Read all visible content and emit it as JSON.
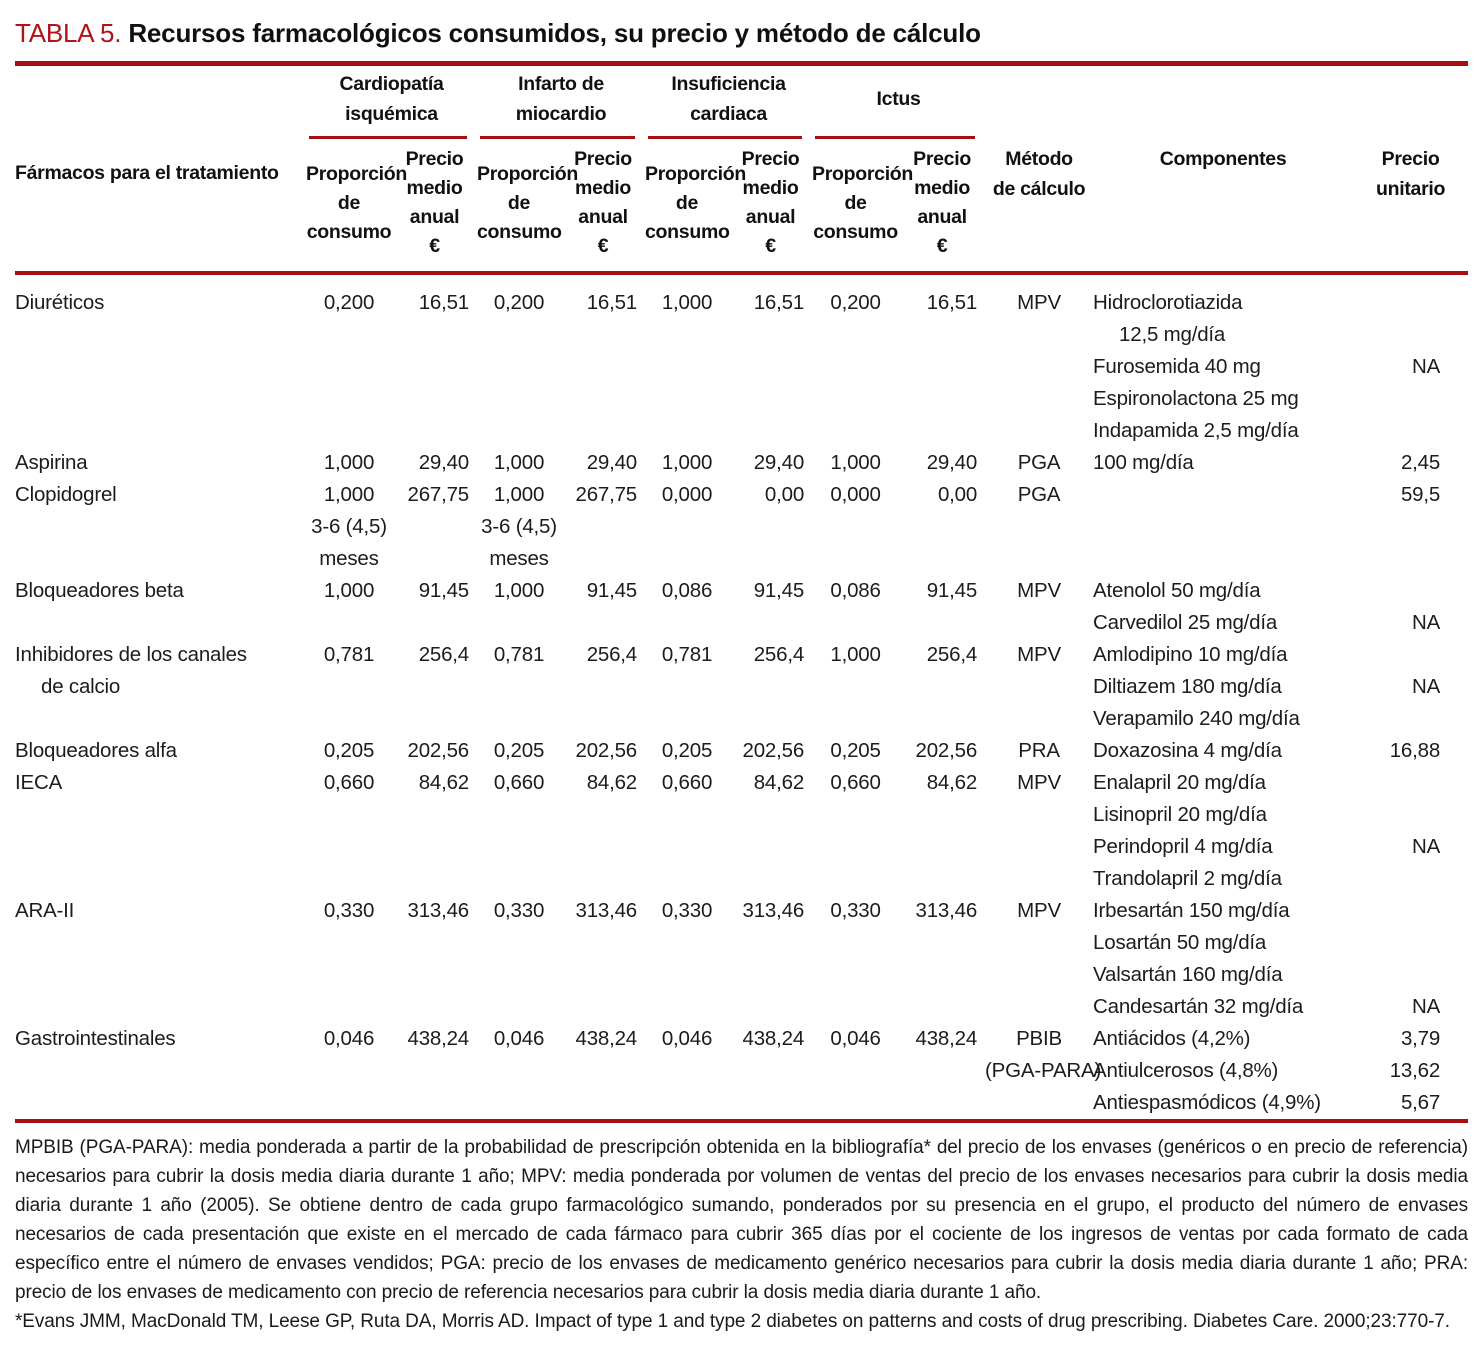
{
  "colors": {
    "accent_red": "#a50f14",
    "title_red": "#b3121a",
    "text": "#1c1c1c"
  },
  "title": {
    "label": "TABLA 5.",
    "text": "Recursos farmacológicos consumidos, su precio y método de cálculo"
  },
  "header": {
    "drug_col": "Fármacos para el tratamiento",
    "groups": [
      {
        "id": "cardiopatia-isquemica",
        "lines": [
          "Cardiopatía",
          "isquémica"
        ]
      },
      {
        "id": "infarto-de-miocardio",
        "lines": [
          "Infarto de",
          "miocardio"
        ]
      },
      {
        "id": "insuficiencia-cardiaca",
        "lines": [
          "Insuficiencia",
          "cardiaca"
        ]
      },
      {
        "id": "ictus",
        "lines": [
          "Ictus"
        ]
      }
    ],
    "sub_proportion": [
      "Proporción",
      "de",
      "consumo"
    ],
    "sub_price": [
      "Precio",
      "medio",
      "anual",
      "€"
    ],
    "method_col": [
      "Método",
      "de cálculo"
    ],
    "components_col": "Componentes",
    "unit_price_col": [
      "Precio",
      "unitario"
    ]
  },
  "rows": [
    {
      "cells": [
        "Diuréticos",
        "0,200",
        "16,51",
        "0,200",
        "16,51",
        "1,000",
        "16,51",
        "0,200",
        "16,51",
        "MPV",
        "Hidroclorotiazida",
        ""
      ],
      "indent_drug": false,
      "indent_comp": false
    },
    {
      "cells": [
        "",
        "",
        "",
        "",
        "",
        "",
        "",
        "",
        "",
        "",
        "12,5 mg/día",
        ""
      ],
      "indent_drug": false,
      "indent_comp": true
    },
    {
      "cells": [
        "",
        "",
        "",
        "",
        "",
        "",
        "",
        "",
        "",
        "",
        "Furosemida 40 mg",
        "NA"
      ],
      "indent_drug": false,
      "indent_comp": false
    },
    {
      "cells": [
        "",
        "",
        "",
        "",
        "",
        "",
        "",
        "",
        "",
        "",
        "Espironolactona 25 mg",
        ""
      ],
      "indent_drug": false,
      "indent_comp": false
    },
    {
      "cells": [
        "",
        "",
        "",
        "",
        "",
        "",
        "",
        "",
        "",
        "",
        "Indapamida 2,5 mg/día",
        ""
      ],
      "indent_drug": false,
      "indent_comp": false
    },
    {
      "cells": [
        "Aspirina",
        "1,000",
        "29,40",
        "1,000",
        "29,40",
        "1,000",
        "29,40",
        "1,000",
        "29,40",
        "PGA",
        "100 mg/día",
        "2,45"
      ],
      "indent_drug": false,
      "indent_comp": false
    },
    {
      "cells": [
        "Clopidogrel",
        "1,000",
        "267,75",
        "1,000",
        "267,75",
        "0,000",
        "0,00",
        "0,000",
        "0,00",
        "PGA",
        "",
        "59,5"
      ],
      "indent_drug": false,
      "indent_comp": false
    },
    {
      "cells": [
        "",
        "3-6 (4,5)",
        "",
        "3-6 (4,5)",
        "",
        "",
        "",
        "",
        "",
        "",
        "",
        ""
      ],
      "indent_drug": false,
      "indent_comp": false
    },
    {
      "cells": [
        "",
        "meses",
        "",
        "meses",
        "",
        "",
        "",
        "",
        "",
        "",
        "",
        ""
      ],
      "indent_drug": false,
      "indent_comp": false
    },
    {
      "cells": [
        "Bloqueadores beta",
        "1,000",
        "91,45",
        "1,000",
        "91,45",
        "0,086",
        "91,45",
        "0,086",
        "91,45",
        "MPV",
        "Atenolol 50 mg/día",
        ""
      ],
      "indent_drug": false,
      "indent_comp": false
    },
    {
      "cells": [
        "",
        "",
        "",
        "",
        "",
        "",
        "",
        "",
        "",
        "",
        "Carvedilol 25 mg/día",
        "NA"
      ],
      "indent_drug": false,
      "indent_comp": false
    },
    {
      "cells": [
        "Inhibidores de los canales",
        "0,781",
        "256,4",
        "0,781",
        "256,4",
        "0,781",
        "256,4",
        "1,000",
        "256,4",
        "MPV",
        "Amlodipino 10 mg/día",
        ""
      ],
      "indent_drug": false,
      "indent_comp": false
    },
    {
      "cells": [
        "de calcio",
        "",
        "",
        "",
        "",
        "",
        "",
        "",
        "",
        "",
        "Diltiazem 180 mg/día",
        "NA"
      ],
      "indent_drug": true,
      "indent_comp": false
    },
    {
      "cells": [
        "",
        "",
        "",
        "",
        "",
        "",
        "",
        "",
        "",
        "",
        "Verapamilo 240 mg/día",
        ""
      ],
      "indent_drug": false,
      "indent_comp": false
    },
    {
      "cells": [
        "Bloqueadores alfa",
        "0,205",
        "202,56",
        "0,205",
        "202,56",
        "0,205",
        "202,56",
        "0,205",
        "202,56",
        "PRA",
        "Doxazosina 4 mg/día",
        "16,88"
      ],
      "indent_drug": false,
      "indent_comp": false
    },
    {
      "cells": [
        "IECA",
        "0,660",
        "84,62",
        "0,660",
        "84,62",
        "0,660",
        "84,62",
        "0,660",
        "84,62",
        "MPV",
        "Enalapril 20 mg/día",
        ""
      ],
      "indent_drug": false,
      "indent_comp": false
    },
    {
      "cells": [
        "",
        "",
        "",
        "",
        "",
        "",
        "",
        "",
        "",
        "",
        "Lisinopril 20 mg/día",
        ""
      ],
      "indent_drug": false,
      "indent_comp": false
    },
    {
      "cells": [
        "",
        "",
        "",
        "",
        "",
        "",
        "",
        "",
        "",
        "",
        "Perindopril 4 mg/día",
        "NA"
      ],
      "indent_drug": false,
      "indent_comp": false
    },
    {
      "cells": [
        "",
        "",
        "",
        "",
        "",
        "",
        "",
        "",
        "",
        "",
        "Trandolapril 2 mg/día",
        ""
      ],
      "indent_drug": false,
      "indent_comp": false
    },
    {
      "cells": [
        "ARA-II",
        "0,330",
        "313,46",
        "0,330",
        "313,46",
        "0,330",
        "313,46",
        "0,330",
        "313,46",
        "MPV",
        "Irbesartán 150 mg/día",
        ""
      ],
      "indent_drug": false,
      "indent_comp": false
    },
    {
      "cells": [
        "",
        "",
        "",
        "",
        "",
        "",
        "",
        "",
        "",
        "",
        "Losartán 50 mg/día",
        ""
      ],
      "indent_drug": false,
      "indent_comp": false
    },
    {
      "cells": [
        "",
        "",
        "",
        "",
        "",
        "",
        "",
        "",
        "",
        "",
        "Valsartán 160 mg/día",
        ""
      ],
      "indent_drug": false,
      "indent_comp": false
    },
    {
      "cells": [
        "",
        "",
        "",
        "",
        "",
        "",
        "",
        "",
        "",
        "",
        "Candesartán 32 mg/día",
        "NA"
      ],
      "indent_drug": false,
      "indent_comp": false
    },
    {
      "cells": [
        "Gastrointestinales",
        "0,046",
        "438,24",
        "0,046",
        "438,24",
        "0,046",
        "438,24",
        "0,046",
        "438,24",
        "PBIB",
        "Antiácidos (4,2%)",
        "3,79"
      ],
      "indent_drug": false,
      "indent_comp": false
    },
    {
      "cells": [
        "",
        "",
        "",
        "",
        "",
        "",
        "",
        "",
        "",
        "(PGA-PARA)",
        "Antiulcerosos (4,8%)",
        "13,62"
      ],
      "indent_drug": false,
      "indent_comp": false
    },
    {
      "cells": [
        "",
        "",
        "",
        "",
        "",
        "",
        "",
        "",
        "",
        "",
        "Antiespasmódicos (4,9%)",
        "5,67"
      ],
      "indent_drug": false,
      "indent_comp": false
    }
  ],
  "notes": {
    "definitions": "MPBIB (PGA-PARA): media ponderada a partir de la probabilidad de prescripción obtenida en la bibliografía* del precio de los envases (genéricos o en precio de referencia) necesarios para cubrir la dosis media diaria durante 1 año; MPV: media ponderada por volumen de ventas del precio de los envases necesarios para cubrir la dosis media diaria durante 1 año (2005). Se obtiene dentro de cada grupo farmacológico sumando, ponderados por su presencia en el grupo, el producto del número de envases necesarios de cada presentación que existe en el mercado de cada fármaco para cubrir 365 días por el cociente de los ingresos de ventas por cada formato de cada específico entre el número de envases vendidos; PGA: precio de los envases de medicamento genérico necesarios para cubrir la dosis media diaria durante 1 año; PRA: precio de los envases de medicamento con precio de referencia necesarios para cubrir la dosis media diaria durante 1 año.",
    "reference": "*Evans JMM, MacDonald TM, Leese GP, Ruta DA, Morris AD. Impact of type 1 and type 2 diabetes on patterns and costs of drug prescribing. Diabetes Care. 2000;23:770-7."
  }
}
